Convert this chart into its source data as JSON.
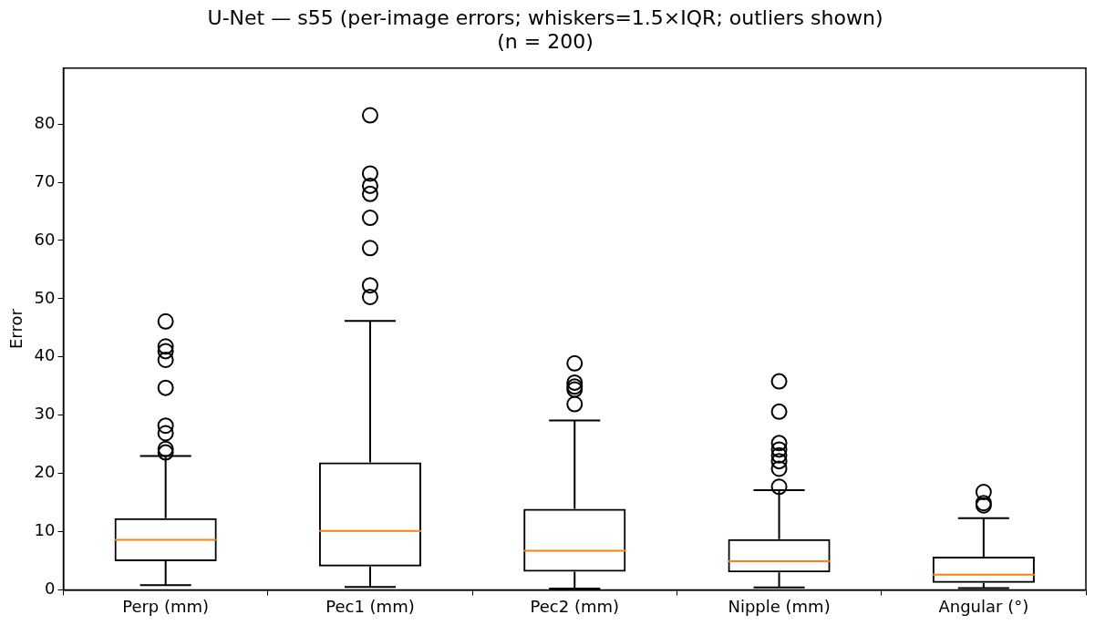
{
  "chart_data": {
    "type": "box",
    "title": "U-Net — s55 (per-image errors; whiskers=1.5×IQR; outliers shown)\n(n = 200)",
    "ylabel": "Error",
    "categories": [
      "Perp (mm)",
      "Pec1 (mm)",
      "Pec2 (mm)",
      "Nipple (mm)",
      "Angular (°)"
    ],
    "boxes": [
      {
        "low": 0.8,
        "q1": 4.9,
        "median": 8.6,
        "q3": 12.3,
        "high": 23.0,
        "outliers": [
          46.1,
          41.8,
          41.0,
          39.5,
          34.7,
          28.2,
          26.9,
          24.2,
          23.6
        ]
      },
      {
        "low": 0.5,
        "q1": 4.0,
        "median": 10.1,
        "q3": 21.9,
        "high": 46.2,
        "outliers": [
          81.5,
          71.5,
          69.4,
          68.0,
          63.9,
          58.7,
          52.3,
          50.3
        ]
      },
      {
        "low": 0.2,
        "q1": 3.1,
        "median": 6.7,
        "q3": 13.9,
        "high": 29.1,
        "outliers": [
          38.9,
          35.6,
          34.9,
          34.4,
          31.9
        ]
      },
      {
        "low": 0.4,
        "q1": 3.0,
        "median": 4.9,
        "q3": 8.7,
        "high": 17.1,
        "outliers": [
          35.8,
          30.6,
          25.2,
          24.1,
          23.1,
          22.1,
          20.8,
          17.7
        ]
      },
      {
        "low": 0.3,
        "q1": 1.2,
        "median": 2.6,
        "q3": 5.7,
        "high": 12.3,
        "outliers": [
          16.8,
          14.9,
          14.5
        ]
      }
    ],
    "ylim": [
      0,
      89.6
    ],
    "yticks": [
      0,
      10,
      20,
      30,
      40,
      50,
      60,
      70,
      80
    ],
    "grid": false
  }
}
